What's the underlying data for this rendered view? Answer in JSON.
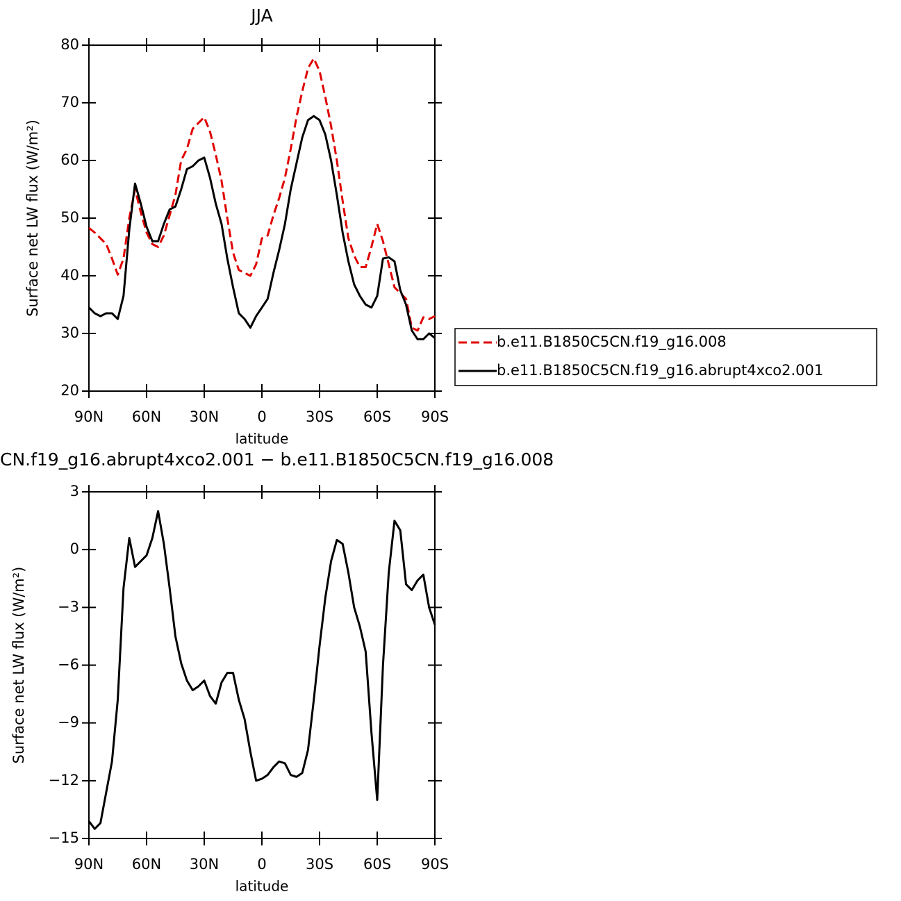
{
  "chart_data": [
    {
      "type": "line",
      "title": "JJA",
      "xlabel": "latitude",
      "ylabel": "Surface net LW flux (W/m²)",
      "x": [
        90,
        87,
        84,
        81,
        78,
        75,
        72,
        69,
        66,
        63,
        60,
        57,
        54,
        51,
        48,
        45,
        42,
        39,
        36,
        33,
        30,
        27,
        24,
        21,
        18,
        15,
        12,
        9,
        6,
        3,
        0,
        -3,
        -6,
        -9,
        -12,
        -15,
        -18,
        -21,
        -24,
        -27,
        -30,
        -33,
        -36,
        -39,
        -42,
        -45,
        -48,
        -51,
        -54,
        -57,
        -60,
        -63,
        -66,
        -69,
        -72,
        -75,
        -78,
        -81,
        -84,
        -87,
        -90
      ],
      "xlim": [
        90,
        -90
      ],
      "xticks": [
        {
          "value": 90,
          "label": "90N"
        },
        {
          "value": 60,
          "label": "60N"
        },
        {
          "value": 30,
          "label": "30N"
        },
        0,
        {
          "value": -30,
          "label": "30S"
        },
        {
          "value": -60,
          "label": "60S"
        },
        {
          "value": -90,
          "label": "90S"
        }
      ],
      "ylim": [
        20,
        80
      ],
      "yticks": [
        20,
        30,
        40,
        50,
        60,
        70,
        80
      ],
      "legend": "outside right",
      "series": [
        {
          "name": "b.e11.B1850C5CN.f19_g16.008",
          "color": "#e00000",
          "linestyle": "dashed",
          "values": [
            48.3,
            47.5,
            46.5,
            45.5,
            43,
            40.2,
            43,
            50,
            55,
            51,
            47.5,
            45.5,
            45,
            47,
            50.5,
            54,
            60,
            62,
            65.5,
            66.5,
            67.5,
            65,
            61,
            56.5,
            50,
            44,
            41,
            40.5,
            40,
            42,
            46.5,
            47,
            50.5,
            53.5,
            57,
            62,
            67.5,
            72,
            76,
            77.7,
            75.5,
            71,
            66,
            60,
            53,
            46.5,
            43.5,
            41.5,
            41.5,
            45,
            49,
            46,
            42,
            38,
            37,
            36,
            31,
            30.5,
            32.8,
            32.5,
            33
          ]
        },
        {
          "name": "b.e11.B1850C5CN.f19_g16.abrupt4xco2.001",
          "color": "#000000",
          "linestyle": "solid",
          "values": [
            34.5,
            33.5,
            33,
            33.5,
            33.5,
            32.5,
            36.5,
            48,
            56,
            52.5,
            48.5,
            46,
            46,
            49,
            51.5,
            52,
            55,
            58.5,
            59,
            60,
            60.5,
            57,
            52.5,
            49,
            43,
            38,
            33.5,
            32.5,
            31,
            33,
            34.5,
            36,
            40.5,
            44.5,
            49,
            55,
            59.5,
            64,
            67,
            67.7,
            67,
            64.5,
            60,
            54,
            47.5,
            42.5,
            38.5,
            36.5,
            35,
            34.5,
            36.5,
            43,
            43.2,
            42.5,
            37.5,
            35,
            30.5,
            29,
            29,
            30,
            29.2
          ]
        }
      ]
    },
    {
      "type": "line",
      "title": "CN.f19_g16.abrupt4xco2.001 − b.e11.B1850C5CN.f19_g16.008",
      "xlabel": "latitude",
      "ylabel": "Surface net LW flux (W/m²)",
      "x": [
        90,
        87,
        84,
        81,
        78,
        75,
        72,
        69,
        66,
        63,
        60,
        57,
        54,
        51,
        48,
        45,
        42,
        39,
        36,
        33,
        30,
        27,
        24,
        21,
        18,
        15,
        12,
        9,
        6,
        3,
        0,
        -3,
        -6,
        -9,
        -12,
        -15,
        -18,
        -21,
        -24,
        -27,
        -30,
        -33,
        -36,
        -39,
        -42,
        -45,
        -48,
        -51,
        -54,
        -57,
        -60,
        -63,
        -66,
        -69,
        -72,
        -75,
        -78,
        -81,
        -84,
        -87,
        -90
      ],
      "xlim": [
        90,
        -90
      ],
      "xticks": [
        {
          "value": 90,
          "label": "90N"
        },
        {
          "value": 60,
          "label": "60N"
        },
        {
          "value": 30,
          "label": "30N"
        },
        0,
        {
          "value": -30,
          "label": "30S"
        },
        {
          "value": -60,
          "label": "60S"
        },
        {
          "value": -90,
          "label": "90S"
        }
      ],
      "ylim": [
        -15,
        3
      ],
      "yticks": [
        {
          "value": -15,
          "label": "−15"
        },
        {
          "value": -12,
          "label": "−12"
        },
        {
          "value": -9,
          "label": "−9"
        },
        {
          "value": -6,
          "label": "−6"
        },
        {
          "value": -3,
          "label": "−3"
        },
        0,
        3
      ],
      "color": "#000000",
      "values": [
        -14.1,
        -14.5,
        -14.2,
        -12.6,
        -11,
        -7.8,
        -2,
        0.6,
        -0.9,
        -0.6,
        -0.3,
        0.6,
        2,
        0.3,
        -2,
        -4.5,
        -5.9,
        -6.8,
        -7.3,
        -7.1,
        -6.8,
        -7.6,
        -8,
        -6.9,
        -6.4,
        -6.4,
        -7.8,
        -8.8,
        -10.5,
        -12,
        -11.9,
        -11.7,
        -11.3,
        -11,
        -11.1,
        -11.7,
        -11.8,
        -11.6,
        -10.4,
        -7.8,
        -5,
        -2.5,
        -0.6,
        0.5,
        0.3,
        -1.2,
        -3,
        -4,
        -5.3,
        -9.5,
        -13,
        -6,
        -1.2,
        1.5,
        1,
        -1.8,
        -2.1,
        -1.6,
        -1.3,
        -3,
        -3.9
      ]
    }
  ]
}
